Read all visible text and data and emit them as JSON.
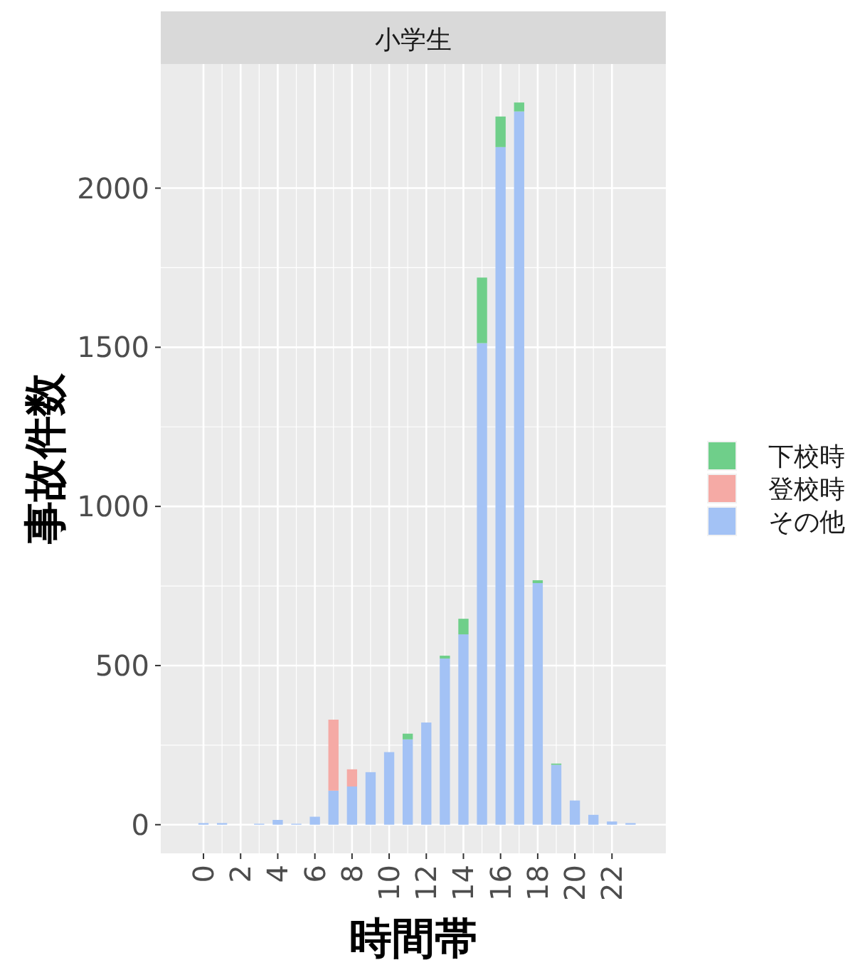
{
  "chart_data": {
    "type": "bar",
    "stacked": true,
    "title": "小学生",
    "xlabel": "時間帯",
    "ylabel": "事故件数",
    "x": [
      0,
      1,
      2,
      3,
      4,
      5,
      6,
      7,
      8,
      9,
      10,
      11,
      12,
      13,
      14,
      15,
      16,
      17,
      18,
      19,
      20,
      21,
      22,
      23
    ],
    "series": [
      {
        "name": "その他",
        "color": "#a3c2f5",
        "values": [
          5,
          5,
          0,
          3,
          15,
          3,
          25,
          107,
          120,
          165,
          228,
          268,
          321,
          522,
          598,
          1513,
          2129,
          2241,
          759,
          188,
          76,
          31,
          10,
          5
        ]
      },
      {
        "name": "登校時",
        "color": "#f5aaa5",
        "values": [
          null,
          null,
          null,
          null,
          null,
          null,
          null,
          223,
          54,
          null,
          null,
          null,
          null,
          null,
          null,
          null,
          null,
          null,
          null,
          null,
          null,
          null,
          null,
          null
        ]
      },
      {
        "name": "下校時",
        "color": "#6fcf8a",
        "values": [
          null,
          null,
          null,
          null,
          null,
          null,
          null,
          null,
          null,
          null,
          null,
          18,
          null,
          9,
          49,
          206,
          96,
          28,
          9,
          4,
          null,
          null,
          null,
          null
        ]
      }
    ],
    "xlim": [
      -2.3,
      24.9
    ],
    "ylim": [
      -90,
      2390
    ],
    "xticks": [
      0,
      2,
      4,
      6,
      8,
      10,
      12,
      14,
      16,
      18,
      20,
      22
    ],
    "yticks": [
      0,
      500,
      1000,
      1500,
      2000
    ],
    "grid": true,
    "legend": "right"
  }
}
